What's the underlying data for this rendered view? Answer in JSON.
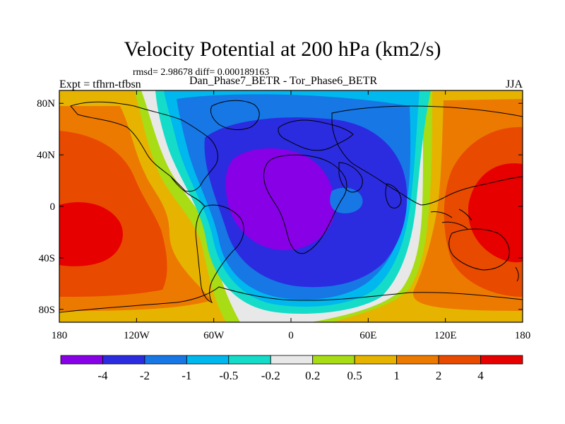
{
  "header": {
    "title": "Velocity Potential at 200 hPa (km2/s)",
    "stats": "rmsd= 2.98678 diff= 0.000189163",
    "left": "Expt = tfhrn-tfbsn",
    "center": "Dan_Phase7_BETR - Tor_Phase6_BETR",
    "right": "JJA"
  },
  "chart_data": {
    "type": "heatmap",
    "title": "Velocity Potential at 200 hPa (km2/s)",
    "subtitle": "Dan_Phase7_BETR - Tor_Phase6_BETR",
    "x_ticks": [
      "180",
      "120W",
      "60W",
      "0",
      "60E",
      "120E",
      "180"
    ],
    "x_tick_values": [
      -180,
      -120,
      -60,
      0,
      60,
      120,
      180
    ],
    "y_ticks": [
      "80N",
      "40N",
      "0",
      "40S",
      "80S"
    ],
    "y_tick_values": [
      80,
      40,
      0,
      -40,
      -80
    ],
    "xlim": [
      -180,
      180
    ],
    "ylim": [
      -90,
      90
    ],
    "levels": [
      "-4",
      "-2",
      "-1",
      "-0.5",
      "-0.2",
      "0.2",
      "0.5",
      "1",
      "2",
      "4"
    ],
    "level_values": [
      -4,
      -2,
      -1,
      -0.5,
      -0.2,
      0.2,
      0.5,
      1,
      2,
      4
    ],
    "colors": [
      "#8800e6",
      "#2b2be0",
      "#1677e5",
      "#00b7ee",
      "#14dcc8",
      "#e8e8e8",
      "#a8dc14",
      "#e6b400",
      "#ed7a00",
      "#e84a00",
      "#e60000"
    ],
    "pattern": "Negative anomaly centered over Atlantic/Africa (minimum below -4 near 10W, 15N); positive anomalies over Pacific (maximum above 4 near 150E and 160W)"
  }
}
